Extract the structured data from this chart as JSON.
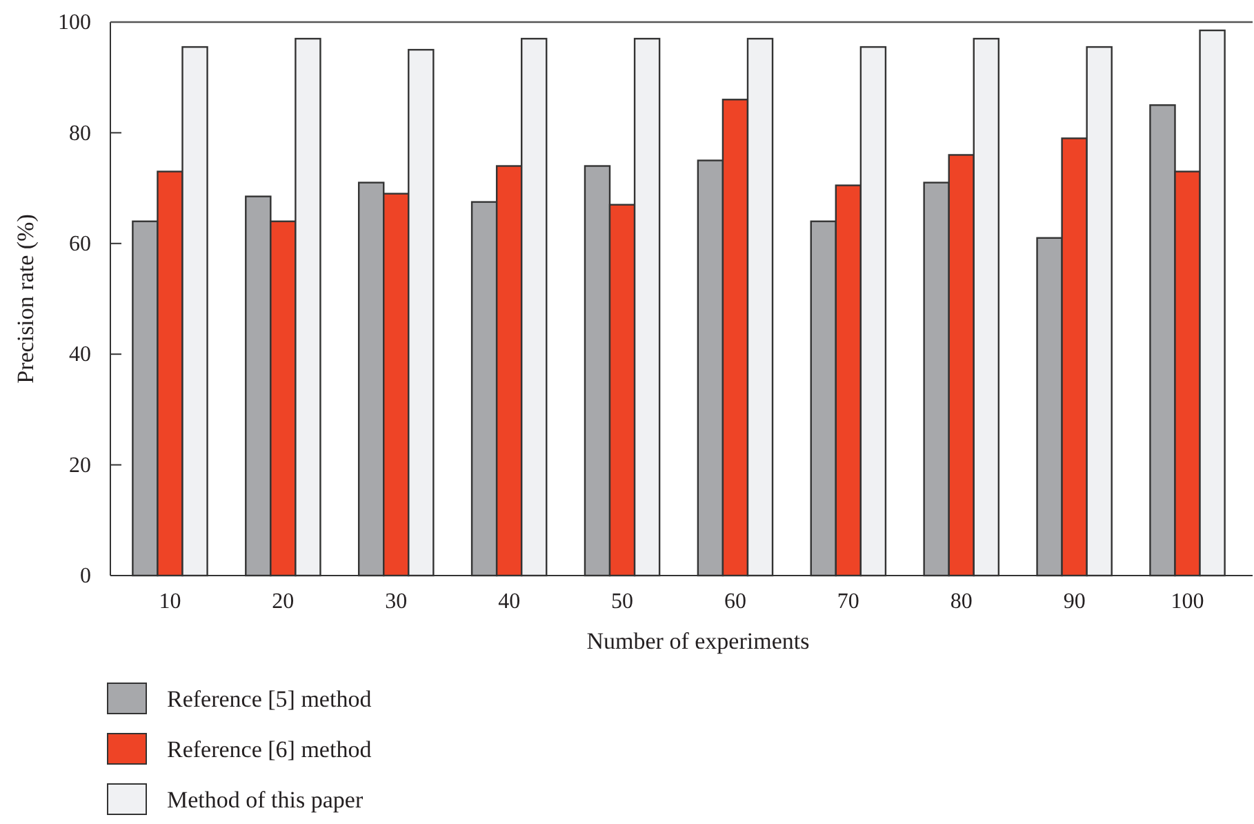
{
  "chart_data": {
    "type": "bar",
    "xlabel": "Number of experiments",
    "ylabel": "Precision rate (%)",
    "categories": [
      "10",
      "20",
      "30",
      "40",
      "50",
      "60",
      "70",
      "80",
      "90",
      "100"
    ],
    "series": [
      {
        "name": "Reference [5] method",
        "color": "#a7a8ab",
        "values": [
          64,
          68.5,
          71,
          67.5,
          74,
          75,
          64,
          71,
          61,
          85
        ]
      },
      {
        "name": "Reference [6] method",
        "color": "#ee4426",
        "values": [
          73,
          64,
          69,
          74,
          67,
          86,
          70.5,
          76,
          79,
          73
        ]
      },
      {
        "name": "Method of this paper",
        "color": "#f0f1f3",
        "values": [
          95.5,
          97,
          95,
          97,
          97,
          97,
          95.5,
          97,
          95.5,
          98.5
        ]
      }
    ],
    "ylim": [
      0,
      100
    ],
    "yticks": [
      0,
      20,
      40,
      60,
      80,
      100
    ],
    "grid": false,
    "legend": "bottom left"
  }
}
